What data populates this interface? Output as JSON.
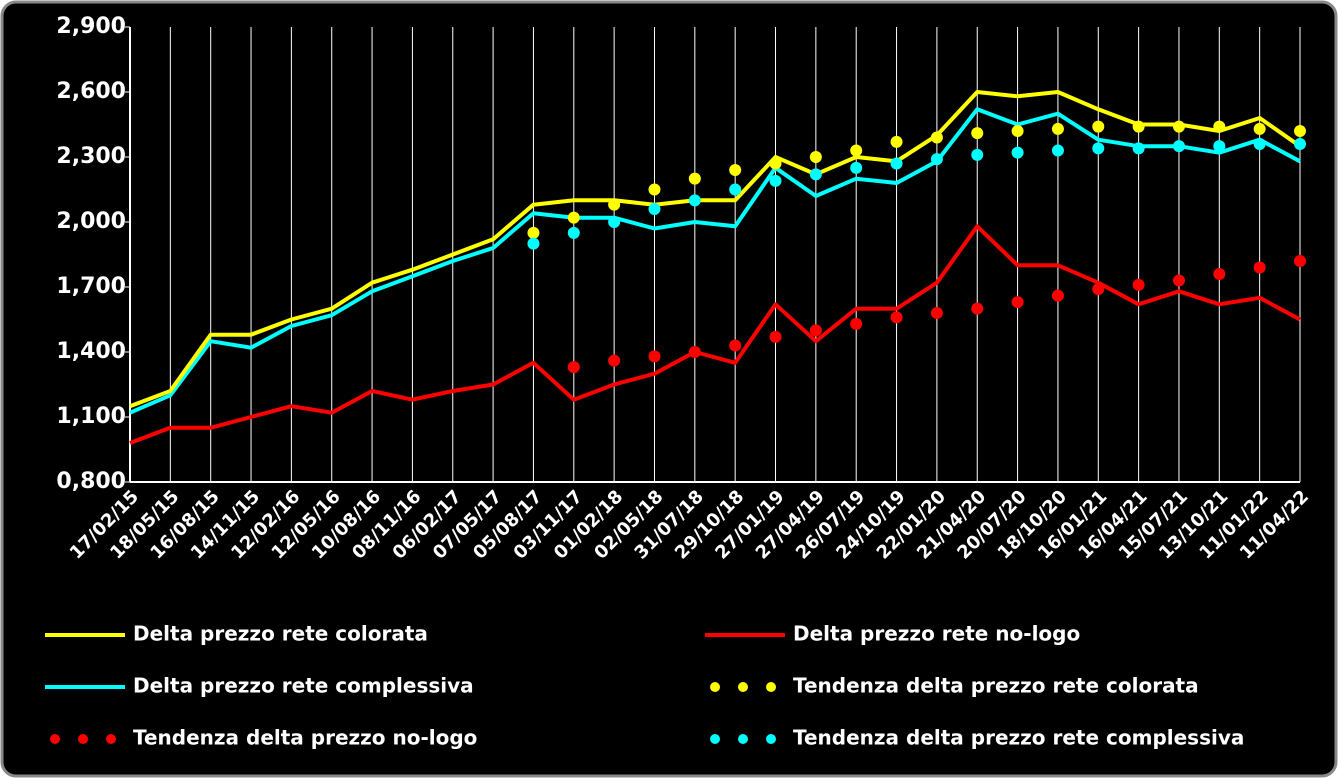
{
  "chart_data": {
    "type": "line",
    "categories": [
      "17/02/15",
      "18/05/15",
      "16/08/15",
      "14/11/15",
      "12/02/16",
      "12/05/16",
      "10/08/16",
      "08/11/16",
      "06/02/17",
      "07/05/17",
      "05/08/17",
      "03/11/17",
      "01/02/18",
      "02/05/18",
      "31/07/18",
      "29/10/18",
      "27/01/19",
      "27/04/19",
      "26/07/19",
      "24/10/19",
      "22/01/20",
      "21/04/20",
      "20/07/20",
      "18/10/20",
      "16/01/21",
      "16/04/21",
      "15/07/21",
      "13/10/21",
      "11/01/22",
      "11/04/22"
    ],
    "series": [
      {
        "name": "Delta prezzo rete colorata",
        "color": "#ffff00",
        "style": "line",
        "values": [
          1.15,
          1.22,
          1.48,
          1.48,
          1.55,
          1.6,
          1.72,
          1.78,
          1.85,
          1.92,
          2.08,
          2.1,
          2.1,
          2.08,
          2.1,
          2.1,
          2.3,
          2.22,
          2.3,
          2.28,
          2.4,
          2.6,
          2.58,
          2.6,
          2.52,
          2.45,
          2.45,
          2.42,
          2.48,
          2.35
        ]
      },
      {
        "name": "Delta prezzo rete no-logo",
        "color": "#ff0000",
        "style": "line",
        "values": [
          0.98,
          1.05,
          1.05,
          1.1,
          1.15,
          1.12,
          1.22,
          1.18,
          1.22,
          1.25,
          1.35,
          1.18,
          1.25,
          1.3,
          1.4,
          1.35,
          1.62,
          1.45,
          1.6,
          1.6,
          1.72,
          1.98,
          1.8,
          1.8,
          1.72,
          1.62,
          1.68,
          1.62,
          1.65,
          1.55
        ]
      },
      {
        "name": "Delta prezzo rete complessiva",
        "color": "#00ffff",
        "style": "line",
        "values": [
          1.12,
          1.2,
          1.45,
          1.42,
          1.52,
          1.57,
          1.68,
          1.75,
          1.82,
          1.88,
          2.04,
          2.02,
          2.02,
          1.97,
          2.0,
          1.98,
          2.25,
          2.12,
          2.2,
          2.18,
          2.28,
          2.52,
          2.45,
          2.5,
          2.38,
          2.35,
          2.35,
          2.32,
          2.38,
          2.28
        ]
      },
      {
        "name": "Tendenza delta prezzo rete colorata",
        "color": "#ffff00",
        "style": "dots",
        "values": [
          null,
          null,
          null,
          null,
          null,
          null,
          null,
          null,
          null,
          null,
          1.95,
          2.02,
          2.08,
          2.15,
          2.2,
          2.24,
          2.27,
          2.3,
          2.33,
          2.37,
          2.39,
          2.41,
          2.42,
          2.43,
          2.44,
          2.44,
          2.44,
          2.44,
          2.43,
          2.42
        ]
      },
      {
        "name": "Tendenza delta prezzo no-logo",
        "color": "#ff0000",
        "style": "dots",
        "values": [
          null,
          null,
          null,
          null,
          null,
          null,
          null,
          null,
          null,
          null,
          null,
          1.33,
          1.36,
          1.38,
          1.4,
          1.43,
          1.47,
          1.5,
          1.53,
          1.56,
          1.58,
          1.6,
          1.63,
          1.66,
          1.69,
          1.71,
          1.73,
          1.76,
          1.79,
          1.82
        ]
      },
      {
        "name": "Tendenza delta prezzo rete complessiva",
        "color": "#00ffff",
        "style": "dots",
        "values": [
          null,
          null,
          null,
          null,
          null,
          null,
          null,
          null,
          null,
          null,
          1.9,
          1.95,
          2.0,
          2.06,
          2.1,
          2.15,
          2.19,
          2.22,
          2.25,
          2.27,
          2.29,
          2.31,
          2.32,
          2.33,
          2.34,
          2.34,
          2.35,
          2.35,
          2.36,
          2.36
        ]
      }
    ],
    "ylim": [
      0.8,
      2.9
    ],
    "yticks": [
      {
        "value": 0.8,
        "label": "0,800"
      },
      {
        "value": 1.1,
        "label": "1,100"
      },
      {
        "value": 1.4,
        "label": "1,400"
      },
      {
        "value": 1.7,
        "label": "1,700"
      },
      {
        "value": 2.0,
        "label": "2,000"
      },
      {
        "value": 2.3,
        "label": "2,300"
      },
      {
        "value": 2.6,
        "label": "2,600"
      },
      {
        "value": 2.9,
        "label": "2,900"
      }
    ],
    "xgrid": true
  }
}
